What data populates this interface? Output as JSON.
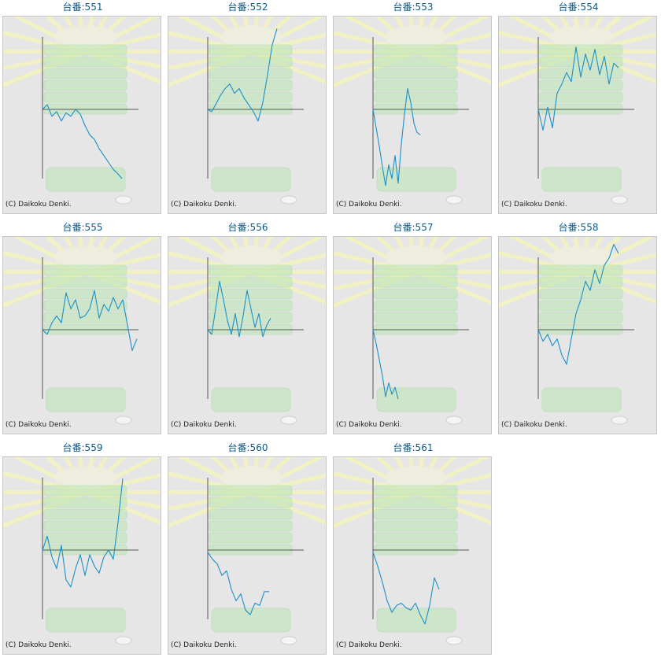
{
  "page": {
    "background": "#ffffff"
  },
  "style": {
    "title_color": "#0a5a8c",
    "line_color": "#1a90c8",
    "axis_color": "#555555",
    "panel_background": "#e6e6e6",
    "art_green": "#b9e6b4",
    "art_rays": "#f1f1c4"
  },
  "copyright": "(C) Daikoku Denki.",
  "chart_data": [
    {
      "type": "line",
      "title": "台番:551",
      "x": [
        0,
        6,
        12,
        18,
        24,
        30,
        36,
        42,
        48,
        54,
        60,
        66,
        72,
        78,
        84,
        90,
        96,
        101
      ],
      "series": [
        {
          "values": [
            0,
            200,
            -300,
            -100,
            -500,
            -150,
            -300,
            0,
            -200,
            -700,
            -1100,
            -1300,
            -1700,
            -2000,
            -2300,
            -2600,
            -2800,
            -3000
          ]
        }
      ]
    },
    {
      "type": "line",
      "title": "台番:552",
      "x": [
        0,
        5,
        10,
        16,
        22,
        28,
        34,
        40,
        46,
        52,
        58,
        64,
        70,
        76,
        82,
        88
      ],
      "series": [
        {
          "values": [
            0,
            -100,
            200,
            600,
            900,
            1100,
            700,
            900,
            500,
            200,
            -100,
            -500,
            300,
            1500,
            2800,
            3500
          ]
        }
      ]
    },
    {
      "type": "line",
      "title": "台番:553",
      "x": [
        0,
        4,
        8,
        12,
        16,
        20,
        24,
        28,
        32,
        36,
        40,
        44,
        48,
        52,
        56,
        60
      ],
      "series": [
        {
          "values": [
            0,
            -800,
            -1600,
            -2500,
            -3300,
            -2400,
            -3000,
            -2000,
            -3200,
            -1500,
            -200,
            900,
            300,
            -600,
            -1000,
            -1100
          ]
        }
      ]
    },
    {
      "type": "line",
      "title": "台番:554",
      "x": [
        0,
        6,
        12,
        18,
        24,
        30,
        36,
        42,
        48,
        54,
        60,
        66,
        72,
        78,
        84,
        90,
        96,
        102
      ],
      "series": [
        {
          "values": [
            0,
            -900,
            100,
            -800,
            700,
            1100,
            1600,
            1200,
            2700,
            1400,
            2400,
            1700,
            2600,
            1500,
            2300,
            1100,
            2000,
            1800
          ]
        }
      ]
    },
    {
      "type": "line",
      "title": "台番:555",
      "x": [
        0,
        6,
        12,
        18,
        24,
        30,
        36,
        42,
        48,
        54,
        60,
        66,
        72,
        78,
        84,
        90,
        96,
        102,
        108,
        114,
        120
      ],
      "series": [
        {
          "values": [
            0,
            -200,
            300,
            600,
            300,
            1600,
            900,
            1300,
            500,
            600,
            900,
            1700,
            500,
            1100,
            800,
            1400,
            900,
            1300,
            200,
            -900,
            -400
          ]
        }
      ]
    },
    {
      "type": "line",
      "title": "台番:556",
      "x": [
        0,
        5,
        10,
        15,
        20,
        25,
        30,
        35,
        40,
        45,
        50,
        55,
        60,
        65,
        70,
        75,
        80
      ],
      "series": [
        {
          "values": [
            0,
            -200,
            900,
            2100,
            1300,
            400,
            -200,
            700,
            -300,
            600,
            1700,
            900,
            100,
            700,
            -300,
            200,
            500
          ]
        }
      ]
    },
    {
      "type": "line",
      "title": "台番:557",
      "x": [
        0,
        4,
        8,
        12,
        16,
        20,
        24,
        28,
        32
      ],
      "series": [
        {
          "values": [
            0,
            -600,
            -1300,
            -2000,
            -2900,
            -2300,
            -2800,
            -2500,
            -3000
          ]
        }
      ]
    },
    {
      "type": "line",
      "title": "台番:558",
      "x": [
        0,
        6,
        12,
        18,
        24,
        30,
        36,
        42,
        48,
        54,
        60,
        66,
        72,
        78,
        84,
        90,
        96,
        102
      ],
      "series": [
        {
          "values": [
            0,
            -500,
            -200,
            -700,
            -400,
            -1100,
            -1500,
            -400,
            700,
            1300,
            2100,
            1700,
            2600,
            2000,
            2800,
            3100,
            3700,
            3300
          ]
        }
      ]
    },
    {
      "type": "line",
      "title": "台番:559",
      "x": [
        0,
        6,
        12,
        18,
        24,
        30,
        36,
        42,
        48,
        54,
        60,
        66,
        72,
        78,
        84,
        90,
        96,
        102
      ],
      "series": [
        {
          "values": [
            0,
            600,
            -300,
            -800,
            200,
            -1300,
            -1600,
            -800,
            -200,
            -1100,
            -200,
            -700,
            -1000,
            -300,
            0,
            -400,
            1200,
            3100
          ]
        }
      ]
    },
    {
      "type": "line",
      "title": "台番:560",
      "x": [
        0,
        6,
        12,
        18,
        24,
        30,
        36,
        42,
        48,
        54,
        60,
        66,
        72,
        78
      ],
      "series": [
        {
          "values": [
            -100,
            -400,
            -600,
            -1100,
            -900,
            -1700,
            -2200,
            -1900,
            -2600,
            -2800,
            -2300,
            -2400,
            -1800,
            -1800
          ]
        }
      ]
    },
    {
      "type": "line",
      "title": "台番:561",
      "x": [
        0,
        6,
        12,
        18,
        24,
        30,
        36,
        42,
        48,
        54,
        60,
        66,
        72,
        78,
        84
      ],
      "series": [
        {
          "values": [
            -100,
            -700,
            -1400,
            -2200,
            -2700,
            -2400,
            -2300,
            -2500,
            -2600,
            -2300,
            -2800,
            -3200,
            -2400,
            -1200,
            -1700
          ]
        }
      ]
    }
  ]
}
